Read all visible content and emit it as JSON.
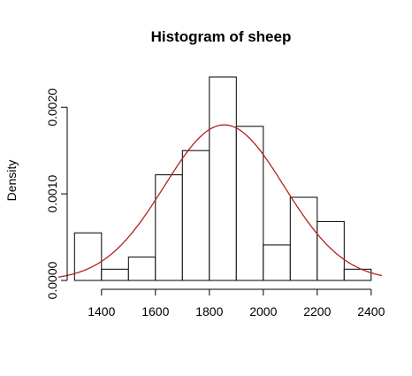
{
  "chart_data": {
    "type": "bar",
    "subtype": "histogram with density curve",
    "title": "Histogram of sheep",
    "xlabel": "",
    "ylabel": "Density",
    "x_ticks": [
      1400,
      1600,
      1800,
      2000,
      2200,
      2400
    ],
    "x_tick_labels": [
      "1400",
      "1600",
      "1800",
      "2000",
      "2200",
      "2400"
    ],
    "y_ticks": [
      0.0,
      0.001,
      0.002
    ],
    "y_tick_labels": [
      "0.0000",
      "0.0010",
      "0.0020"
    ],
    "xlim": [
      1240,
      2440
    ],
    "ylim": [
      0,
      0.00235
    ],
    "bins": [
      {
        "start": 1300,
        "end": 1400,
        "density": 0.00055
      },
      {
        "start": 1400,
        "end": 1500,
        "density": 0.00013
      },
      {
        "start": 1500,
        "end": 1600,
        "density": 0.00027
      },
      {
        "start": 1600,
        "end": 1700,
        "density": 0.00122
      },
      {
        "start": 1700,
        "end": 1800,
        "density": 0.0015
      },
      {
        "start": 1800,
        "end": 1900,
        "density": 0.00235
      },
      {
        "start": 1900,
        "end": 2000,
        "density": 0.00178
      },
      {
        "start": 2000,
        "end": 2100,
        "density": 0.00041
      },
      {
        "start": 2100,
        "end": 2200,
        "density": 0.00096
      },
      {
        "start": 2200,
        "end": 2300,
        "density": 0.00068
      },
      {
        "start": 2300,
        "end": 2400,
        "density": 0.00013
      }
    ],
    "curve": {
      "type": "normal density",
      "mean": 1855,
      "sd": 222,
      "color": "#b22222"
    },
    "grid": false,
    "colors": {
      "bar_fill": "#ffffff",
      "bar_stroke": "#000000",
      "curve": "#b22222"
    }
  }
}
